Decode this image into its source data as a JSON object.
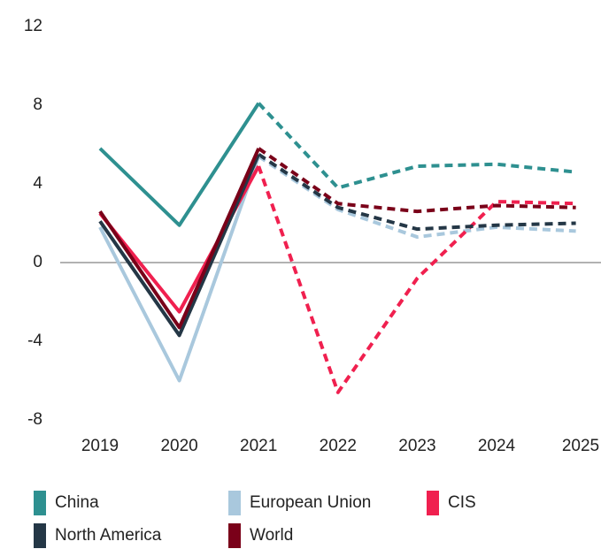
{
  "chart_data": {
    "type": "line",
    "categories": [
      "2019",
      "2020",
      "2021",
      "2022",
      "2023",
      "2024",
      "2025"
    ],
    "forecast_from": "2021",
    "series": [
      {
        "name": "China",
        "color": "#2e9090",
        "values": [
          5.8,
          1.9,
          8.1,
          3.8,
          4.9,
          5.0,
          4.6
        ]
      },
      {
        "name": "European Union",
        "color": "#a9c8dd",
        "values": [
          1.8,
          -6.0,
          5.4,
          2.7,
          1.3,
          1.8,
          1.6
        ]
      },
      {
        "name": "CIS",
        "color": "#f0204f",
        "values": [
          2.5,
          -2.5,
          4.9,
          -6.6,
          -0.8,
          3.1,
          3.0
        ]
      },
      {
        "name": "North America",
        "color": "#243746",
        "values": [
          2.1,
          -3.7,
          5.5,
          2.8,
          1.7,
          1.9,
          2.0
        ]
      },
      {
        "name": "World",
        "color": "#7a0019",
        "values": [
          2.6,
          -3.3,
          5.8,
          3.0,
          2.6,
          2.9,
          2.8
        ]
      }
    ],
    "ylim": [
      -8,
      12
    ],
    "yticks": [
      -8,
      -4,
      0,
      4,
      8,
      12
    ]
  }
}
